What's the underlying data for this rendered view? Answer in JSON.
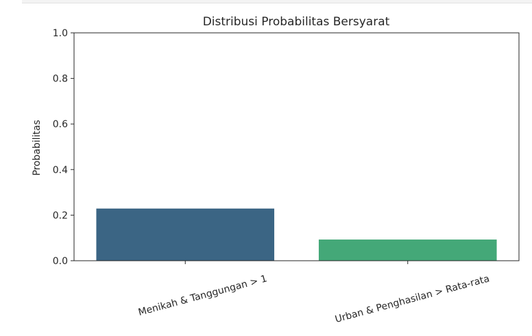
{
  "chart_data": {
    "type": "bar",
    "title": "Distribusi Probabilitas Bersyarat",
    "xlabel": "",
    "ylabel": "Probabilitas",
    "ylim": [
      0,
      1.0
    ],
    "yticks": [
      "0.0",
      "0.2",
      "0.4",
      "0.6",
      "0.8",
      "1.0"
    ],
    "categories": [
      "Menikah & Tanggungan > 1",
      "Urban & Penghasilan > Rata-rata"
    ],
    "values": [
      0.229,
      0.093
    ],
    "colors": [
      "#3b6584",
      "#44a878"
    ],
    "grid": false
  }
}
